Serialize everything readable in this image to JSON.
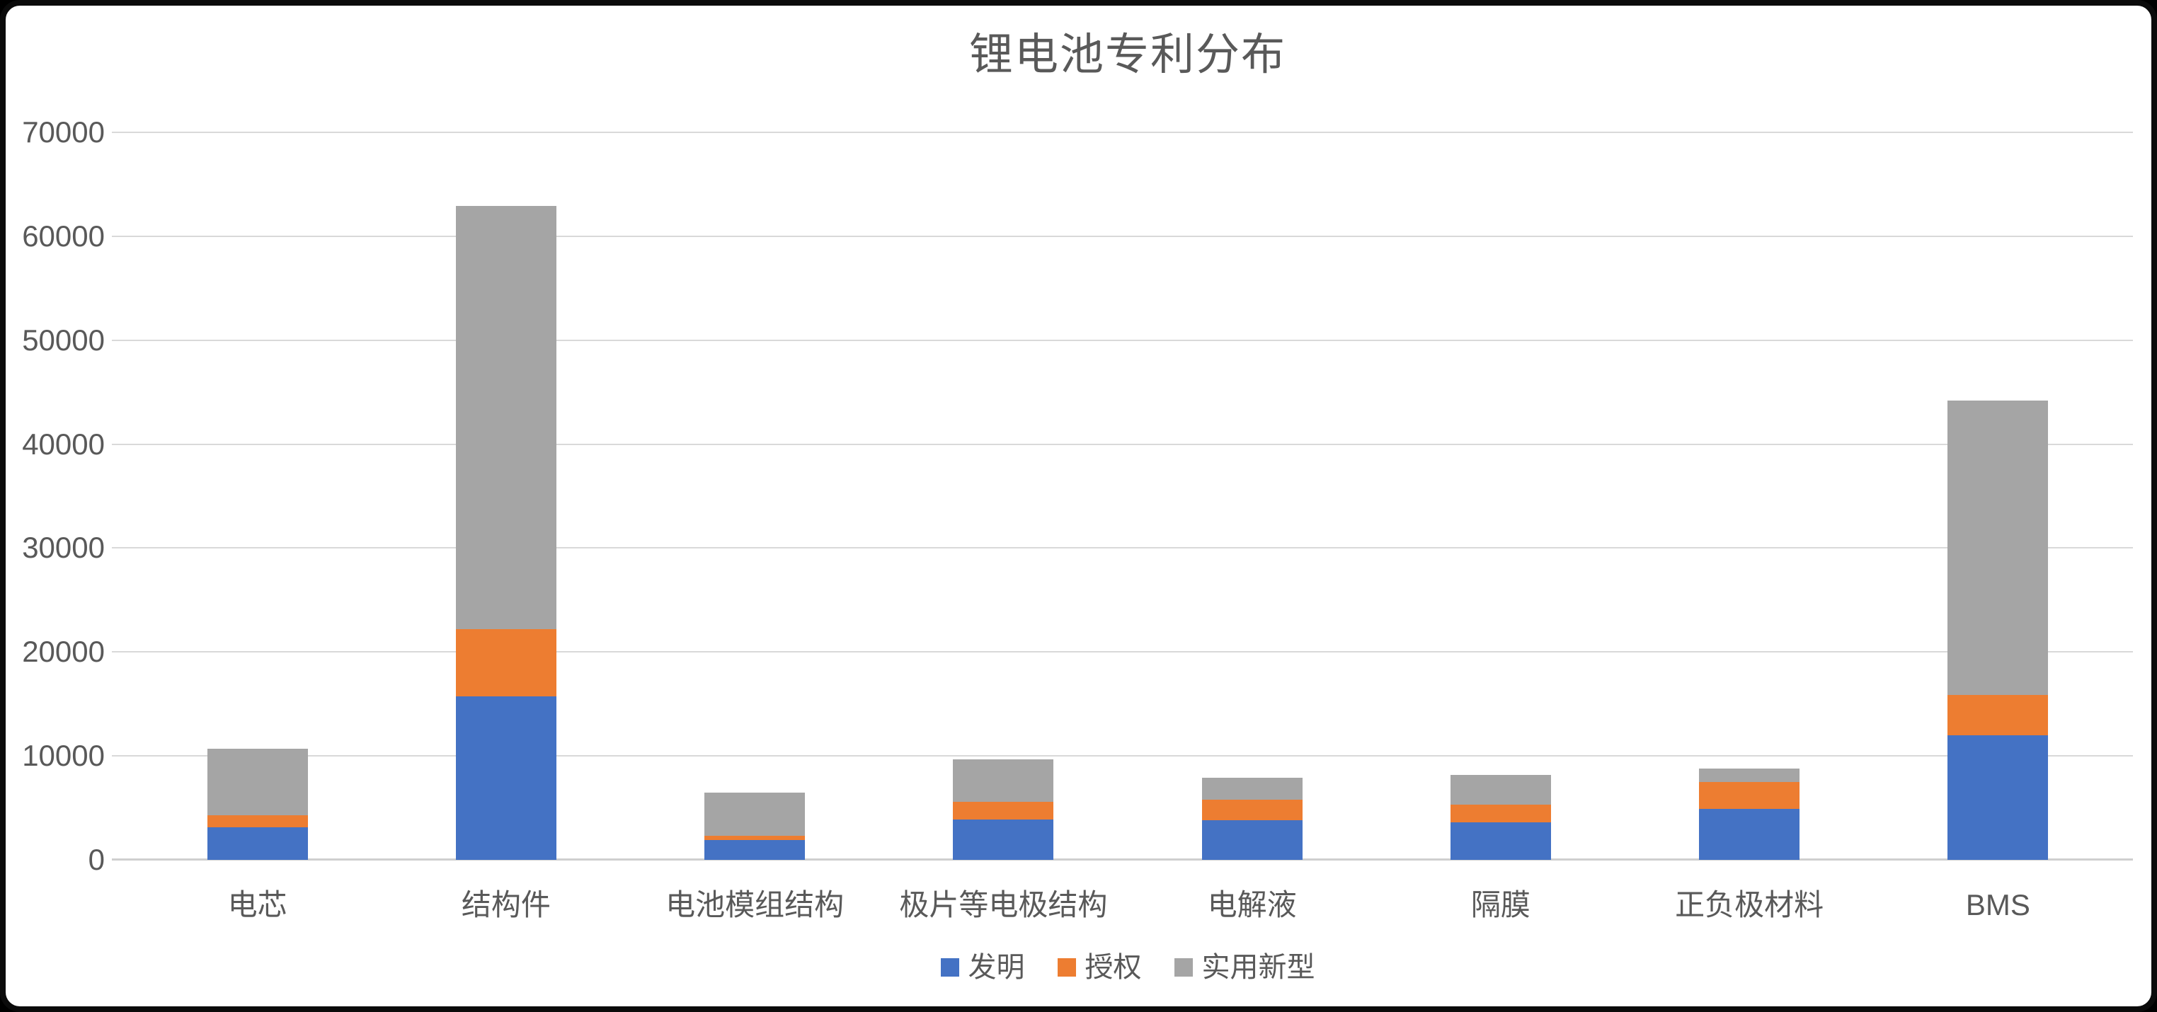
{
  "frame": {
    "background": "#ffffff",
    "border_color": "#0b0b0b",
    "text_color": "#595959",
    "gridline_color": "#d9d9d9"
  },
  "chart_data": {
    "type": "bar",
    "stacked": true,
    "title": "锂电池专利分布",
    "categories": [
      "电芯",
      "结构件",
      "电池模组结构",
      "极片等电极结构",
      "电解液",
      "隔膜",
      "正负极材料",
      "BMS"
    ],
    "series": [
      {
        "name": "发明",
        "color": "#4472C4",
        "values": [
          3100,
          15700,
          1900,
          3900,
          3800,
          3600,
          4900,
          12000
        ]
      },
      {
        "name": "授权",
        "color": "#ED7D31",
        "values": [
          1200,
          6500,
          400,
          1700,
          2000,
          1700,
          2600,
          3900
        ]
      },
      {
        "name": "实用新型",
        "color": "#A5A5A5",
        "values": [
          6400,
          40700,
          4200,
          4100,
          2100,
          2900,
          1300,
          28300
        ]
      }
    ],
    "totals": [
      10700,
      62900,
      6500,
      9700,
      7900,
      8200,
      8800,
      44200
    ],
    "ylim": [
      0,
      70000
    ],
    "yticks": [
      0,
      10000,
      20000,
      30000,
      40000,
      50000,
      60000,
      70000
    ],
    "grid": true,
    "legend_position": "bottom"
  }
}
